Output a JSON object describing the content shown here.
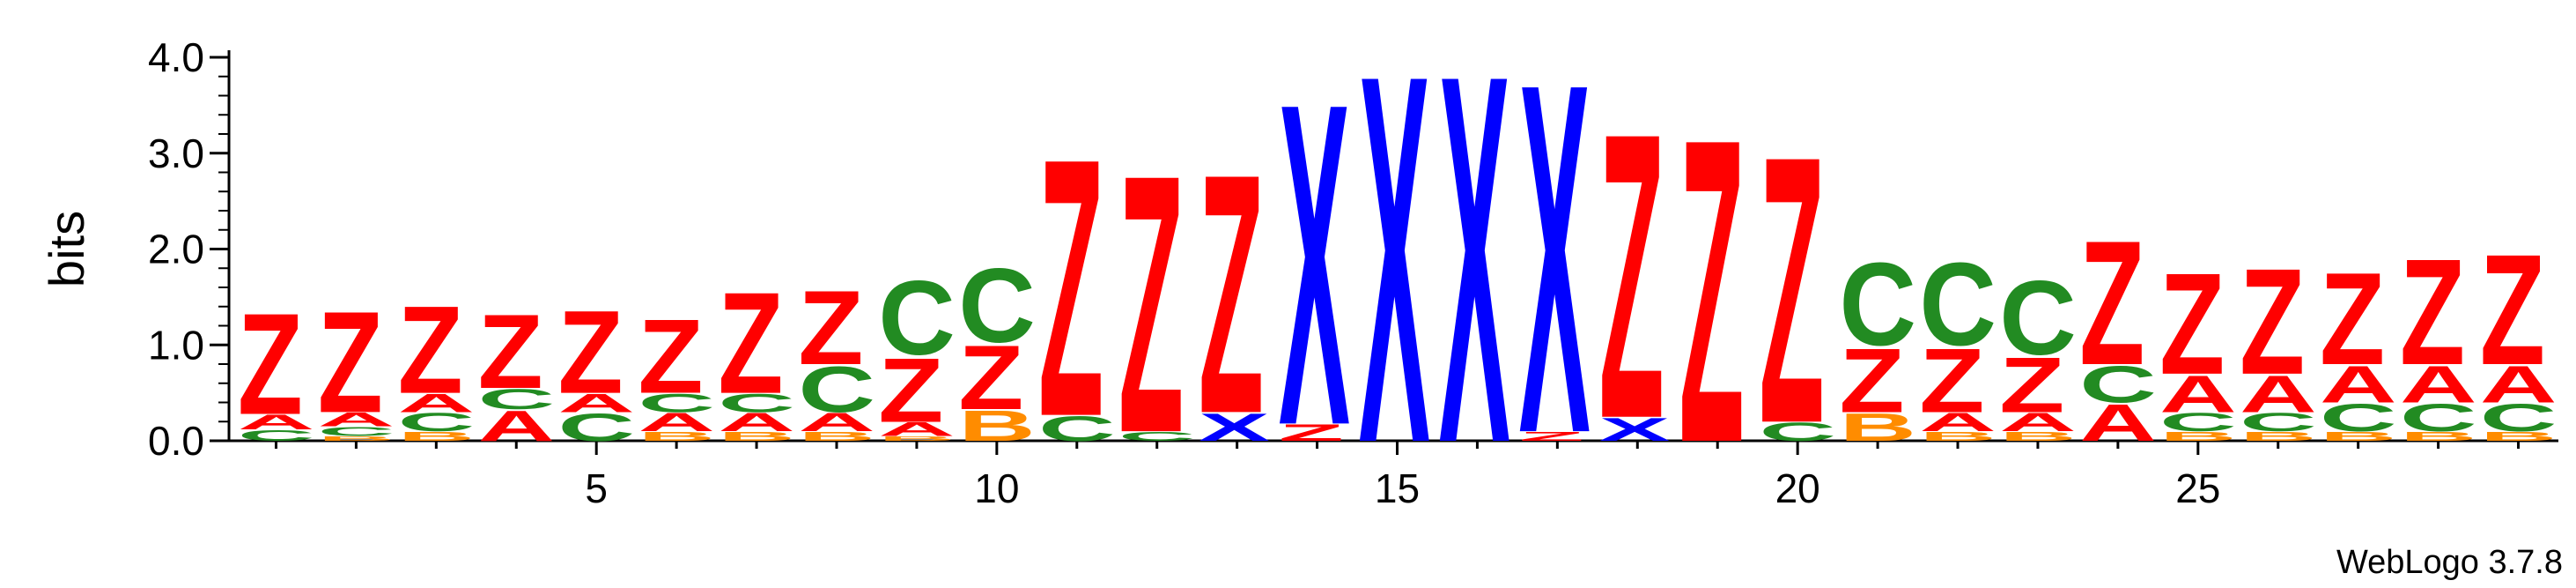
{
  "chart_data": {
    "type": "sequence-logo",
    "title": "",
    "ylabel": "bits",
    "ylim": [
      0,
      4.0
    ],
    "yticks": [
      "0.0",
      "1.0",
      "2.0",
      "3.0",
      "4.0"
    ],
    "xticks": [
      5,
      10,
      15,
      20,
      25
    ],
    "positions": [
      [
        [
          "C",
          0.12
        ],
        [
          "A",
          0.16
        ],
        [
          "Z",
          1.1
        ]
      ],
      [
        [
          "B",
          0.05
        ],
        [
          "C",
          0.1
        ],
        [
          "A",
          0.15
        ],
        [
          "Z",
          1.1
        ]
      ],
      [
        [
          "B",
          0.1
        ],
        [
          "C",
          0.2
        ],
        [
          "A",
          0.2
        ],
        [
          "Z",
          0.95
        ]
      ],
      [
        [
          "A",
          0.33
        ],
        [
          "C",
          0.22
        ],
        [
          "Z",
          0.8
        ]
      ],
      [
        [
          "C",
          0.3
        ],
        [
          "A",
          0.2
        ],
        [
          "Z",
          0.9
        ]
      ],
      [
        [
          "B",
          0.1
        ],
        [
          "A",
          0.2
        ],
        [
          "C",
          0.2
        ],
        [
          "Z",
          0.8
        ]
      ],
      [
        [
          "B",
          0.1
        ],
        [
          "A",
          0.2
        ],
        [
          "C",
          0.2
        ],
        [
          "Z",
          1.1
        ]
      ],
      [
        [
          "B",
          0.1
        ],
        [
          "A",
          0.2
        ],
        [
          "C",
          0.5
        ],
        [
          "Z",
          0.8
        ]
      ],
      [
        [
          "B",
          0.05
        ],
        [
          "A",
          0.15
        ],
        [
          "Z",
          0.7
        ],
        [
          "C",
          0.8
        ]
      ],
      [
        [
          "B",
          0.33
        ],
        [
          "Z",
          0.7
        ],
        [
          "C",
          0.8
        ]
      ],
      [
        [
          "C",
          0.27
        ],
        [
          "Z",
          2.8
        ]
      ],
      [
        [
          "C",
          0.1
        ],
        [
          "Z",
          2.8
        ]
      ],
      [
        [
          "X",
          0.3
        ],
        [
          "Z",
          2.6
        ]
      ],
      [
        [
          "Z",
          0.18
        ],
        [
          "X",
          3.5
        ]
      ],
      [
        [
          "X",
          4.0
        ]
      ],
      [
        [
          "X",
          4.0
        ]
      ],
      [
        [
          "Z",
          0.1
        ],
        [
          "X",
          3.8
        ]
      ],
      [
        [
          "X",
          0.25
        ],
        [
          "Z",
          3.1
        ]
      ],
      [
        [
          "Z",
          3.3
        ]
      ],
      [
        [
          "C",
          0.2
        ],
        [
          "Z",
          2.9
        ]
      ],
      [
        [
          "B",
          0.3
        ],
        [
          "Z",
          0.7
        ],
        [
          "C",
          0.9
        ]
      ],
      [
        [
          "B",
          0.1
        ],
        [
          "A",
          0.2
        ],
        [
          "Z",
          0.7
        ],
        [
          "C",
          0.9
        ]
      ],
      [
        [
          "B",
          0.1
        ],
        [
          "A",
          0.2
        ],
        [
          "Z",
          0.6
        ],
        [
          "C",
          0.8
        ]
      ],
      [
        [
          "A",
          0.4
        ],
        [
          "C",
          0.4
        ],
        [
          "Z",
          1.35
        ]
      ],
      [
        [
          "B",
          0.1
        ],
        [
          "C",
          0.2
        ],
        [
          "A",
          0.4
        ],
        [
          "Z",
          1.1
        ]
      ],
      [
        [
          "B",
          0.1
        ],
        [
          "C",
          0.2
        ],
        [
          "A",
          0.4
        ],
        [
          "Z",
          1.15
        ]
      ],
      [
        [
          "B",
          0.1
        ],
        [
          "C",
          0.3
        ],
        [
          "A",
          0.4
        ],
        [
          "Z",
          1.0
        ]
      ],
      [
        [
          "B",
          0.1
        ],
        [
          "C",
          0.3
        ],
        [
          "A",
          0.4
        ],
        [
          "Z",
          1.15
        ]
      ],
      [
        [
          "B",
          0.1
        ],
        [
          "C",
          0.3
        ],
        [
          "A",
          0.4
        ],
        [
          "Z",
          1.2
        ]
      ]
    ],
    "colors": {
      "A": "#ff0000",
      "Z": "#ff0000",
      "B": "#ff8c00",
      "C": "#228b22",
      "X": "#0000ff"
    },
    "credit": "WebLogo 3.7.8"
  }
}
